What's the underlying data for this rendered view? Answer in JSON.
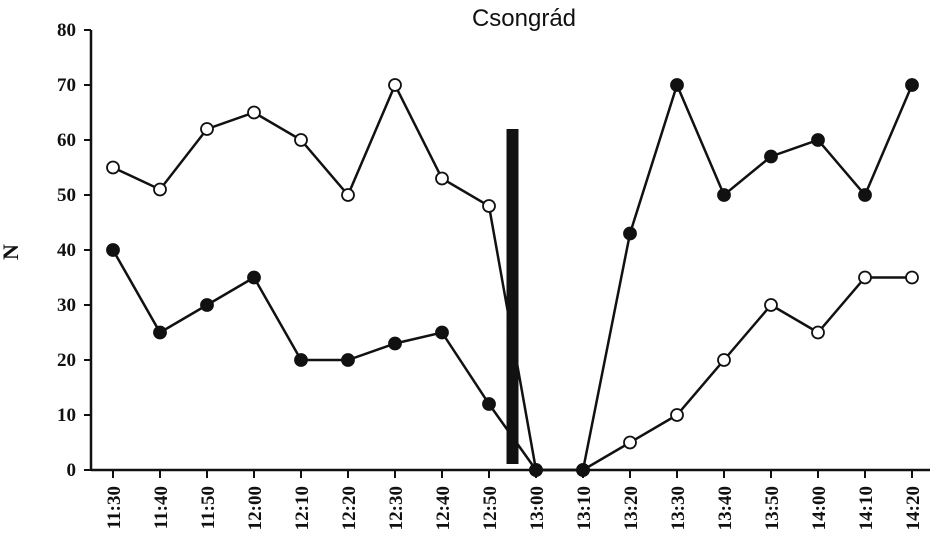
{
  "chart_data": {
    "type": "line",
    "title": "Csongrád",
    "xlabel": "",
    "ylabel": "N",
    "ylim": [
      0,
      80
    ],
    "yticks": [
      "0",
      "10",
      "20",
      "30",
      "40",
      "50",
      "60",
      "70",
      "80"
    ],
    "categories": [
      "11:30",
      "11:40",
      "11:50",
      "12:00",
      "12:10",
      "12:20",
      "12:30",
      "12:40",
      "12:50",
      "13:00",
      "13:10",
      "13:20",
      "13:30",
      "13:40",
      "13:50",
      "14:00",
      "14:10",
      "14:20"
    ],
    "series": [
      {
        "marker": "open-circle",
        "values": [
          55,
          51,
          62,
          65,
          60,
          50,
          70,
          53,
          48,
          0,
          0,
          5,
          10,
          20,
          30,
          25,
          35,
          35
        ]
      },
      {
        "marker": "filled-circle",
        "values": [
          40,
          25,
          30,
          35,
          20,
          20,
          23,
          25,
          12,
          0,
          0,
          43,
          70,
          50,
          57,
          60,
          50,
          70
        ]
      }
    ],
    "event_marker": {
      "shape": "vertical-bar",
      "x_time": "12:55",
      "y_top": 62
    },
    "grid": false,
    "legend": "none"
  }
}
